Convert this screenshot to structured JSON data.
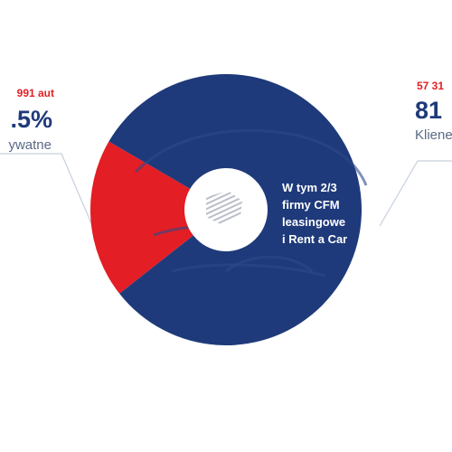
{
  "colors": {
    "navy": "#1f3a7a",
    "red": "#e31e24",
    "light_blue_line": "#c7d0de",
    "text_muted": "#5a6a86",
    "white": "#ffffff"
  },
  "chart_data": {
    "type": "pie",
    "series": [
      {
        "name": "",
        "values": [
          {
            "label": "Prywatne",
            "value": 19
          },
          {
            "label": "Klienci",
            "value": 81
          }
        ]
      }
    ],
    "segments": [
      {
        "label": "Prywatne",
        "value": 19,
        "color": "#e31e24",
        "count_text": "991 aut",
        "pct_text": ".5%",
        "sub_text": "ywatne"
      },
      {
        "label": "Klienci",
        "value": 81,
        "color": "#1f3a7a",
        "count_text": "57 31",
        "pct_text": "81",
        "sub_text": "Kliene"
      }
    ],
    "center_text": [
      "W tym 2/3",
      "firmy CFM",
      "leasingowe",
      "i Rent a Car"
    ],
    "icon": "car-silhouette-icon"
  }
}
